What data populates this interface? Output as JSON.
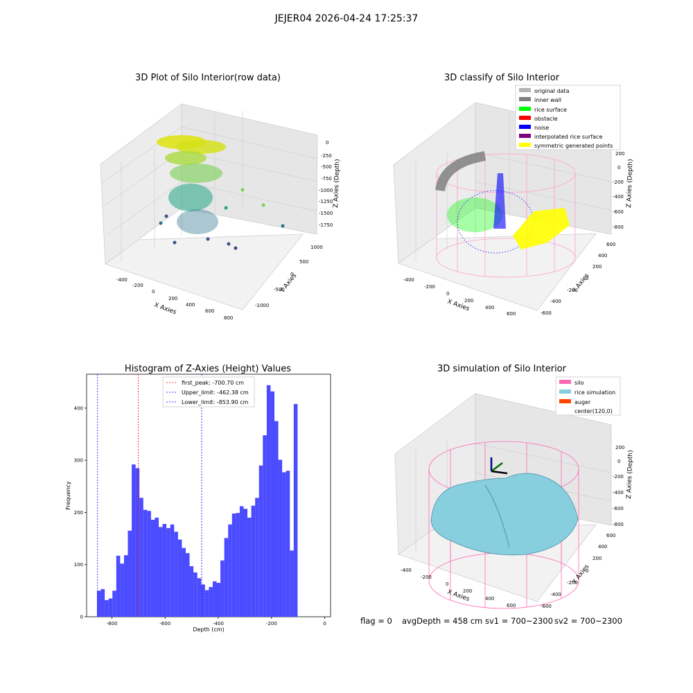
{
  "figure": {
    "suptitle": "JEJER04 2026-04-24 17:25:37",
    "footer": {
      "flag": "flag = 0",
      "avg": "avgDepth = 458 cm",
      "sv1": "sv1 = 700~2300",
      "sv2": "sv2 = 700~2300"
    }
  },
  "chart_data": [
    {
      "type": "scatter",
      "title": "3D Plot of Silo Interior(row data)",
      "xlabel": "X Axies",
      "ylabel": "Y Axies",
      "zlabel": "Z Axies (Depth)",
      "xticks": [
        "-400",
        "-200",
        "0",
        "200",
        "400",
        "600",
        "800"
      ],
      "yticks": [
        "-1000",
        "-500",
        "0",
        "500",
        "1000"
      ],
      "zticks": [
        "0",
        "-250",
        "-500",
        "-750",
        "-1000",
        "-1250",
        "-1500",
        "-1750"
      ],
      "xlim": [
        -500,
        850
      ],
      "ylim": [
        -1150,
        1100
      ],
      "zlim": [
        -1850,
        80
      ],
      "colormap": "viridis",
      "series": []
    },
    {
      "type": "scatter",
      "title": "3D classify of Silo Interior",
      "xlabel": "X Axies",
      "ylabel": "Y Axies",
      "zlabel": "Z Axies (Depth)",
      "xticks": [
        "-400",
        "-200",
        "0",
        "200",
        "400",
        "600"
      ],
      "yticks": [
        "-600",
        "-400",
        "-200",
        "0",
        "200",
        "400",
        "600"
      ],
      "zticks": [
        "200",
        "0",
        "-200",
        "-400",
        "-600",
        "-800"
      ],
      "legend_position": "top-right",
      "series": [
        {
          "name": "original data",
          "color": "#b3b3b3"
        },
        {
          "name": "inner wall",
          "color": "#808080"
        },
        {
          "name": "rice surface",
          "color": "#00ff00"
        },
        {
          "name": "obstacle",
          "color": "#ff0000"
        },
        {
          "name": "noise",
          "color": "#0000ff"
        },
        {
          "name": "interpolated rice surface",
          "color": "#800080"
        },
        {
          "name": "symmetric generated points",
          "color": "#ffff00"
        }
      ]
    },
    {
      "type": "bar",
      "title": "Histogram of Z-Axies (Height) Values",
      "xlabel": "Depth (cm)",
      "ylabel": "Frequency",
      "xlim": [
        -895,
        22
      ],
      "ylim": [
        0,
        465
      ],
      "xticks": [
        -800,
        -600,
        -400,
        -200,
        0
      ],
      "yticks": [
        0,
        100,
        200,
        300,
        400
      ],
      "bar_color": "#4b4bff",
      "bin_start": -856,
      "bin_width": 14.5,
      "values": [
        50,
        53,
        32,
        35,
        50,
        117,
        102,
        118,
        165,
        292,
        285,
        228,
        205,
        203,
        186,
        190,
        172,
        178,
        170,
        177,
        163,
        148,
        132,
        122,
        97,
        85,
        74,
        62,
        51,
        57,
        68,
        65,
        108,
        151,
        177,
        198,
        199,
        212,
        207,
        190,
        213,
        228,
        290,
        348,
        444,
        432,
        375,
        301,
        277,
        280,
        127,
        408
      ],
      "vlines": [
        {
          "name": "first_peak: -700.70 cm",
          "x": -700.7,
          "color": "#ff0000"
        },
        {
          "name": "Upper_limit: -462.38 cm",
          "x": -462.38,
          "color": "#0000ff"
        },
        {
          "name": "Lower_limit: -853.90 cm",
          "x": -853.9,
          "color": "#0000ff"
        }
      ],
      "legend_position": "top-center"
    },
    {
      "type": "surface",
      "title": "3D simulation of Silo Interior",
      "xlabel": "X Axies",
      "ylabel": "Y Axies",
      "zlabel": "Z Axies (Depth)",
      "xticks": [
        "-400",
        "-200",
        "0",
        "200",
        "400",
        "600"
      ],
      "yticks": [
        "-600",
        "-400",
        "-200",
        "0",
        "200",
        "400",
        "600"
      ],
      "zticks": [
        "200",
        "0",
        "-200",
        "-400",
        "-600",
        "-800"
      ],
      "legend_position": "top-right",
      "series": [
        {
          "name": "silo",
          "color": "#ff69b4"
        },
        {
          "name": "rice simulation",
          "color": "#87cede"
        },
        {
          "name": "auger",
          "color": "#ff4500"
        },
        {
          "name": "center(120,0)",
          "color": ""
        }
      ]
    }
  ]
}
